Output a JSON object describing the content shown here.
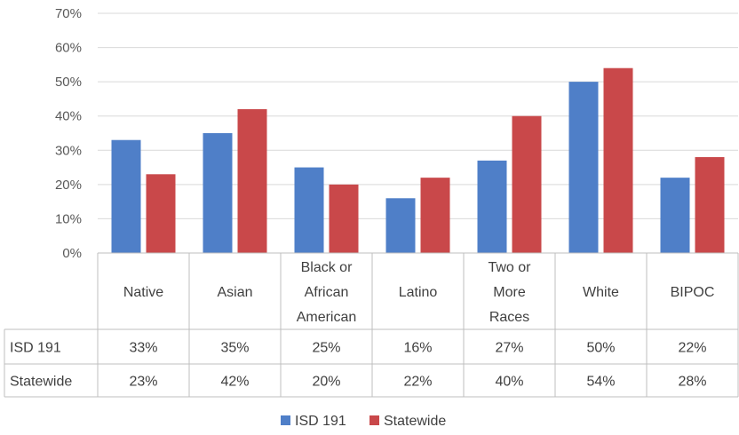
{
  "chart_data": {
    "type": "bar",
    "categories": [
      [
        "Native"
      ],
      [
        "Asian"
      ],
      [
        "Black or",
        "African",
        "American"
      ],
      [
        "Latino"
      ],
      [
        "Two or",
        "More",
        "Races"
      ],
      [
        "White"
      ],
      [
        "BIPOC"
      ]
    ],
    "series": [
      {
        "name": "ISD 191",
        "values": [
          33,
          35,
          25,
          16,
          27,
          50,
          22
        ],
        "labels": [
          "33%",
          "35%",
          "25%",
          "16%",
          "27%",
          "50%",
          "22%"
        ]
      },
      {
        "name": "Statewide",
        "values": [
          23,
          42,
          20,
          22,
          40,
          54,
          28
        ],
        "labels": [
          "23%",
          "42%",
          "20%",
          "22%",
          "40%",
          "54%",
          "28%"
        ]
      }
    ],
    "yticks": [
      "0%",
      "10%",
      "20%",
      "30%",
      "40%",
      "50%",
      "60%",
      "70%"
    ],
    "ylim": [
      0,
      70
    ],
    "grid": true,
    "legend": "bottom",
    "data_table": true,
    "colors": {
      "ISD 191": "#4f7fc8",
      "Statewide": "#c9484a"
    }
  }
}
